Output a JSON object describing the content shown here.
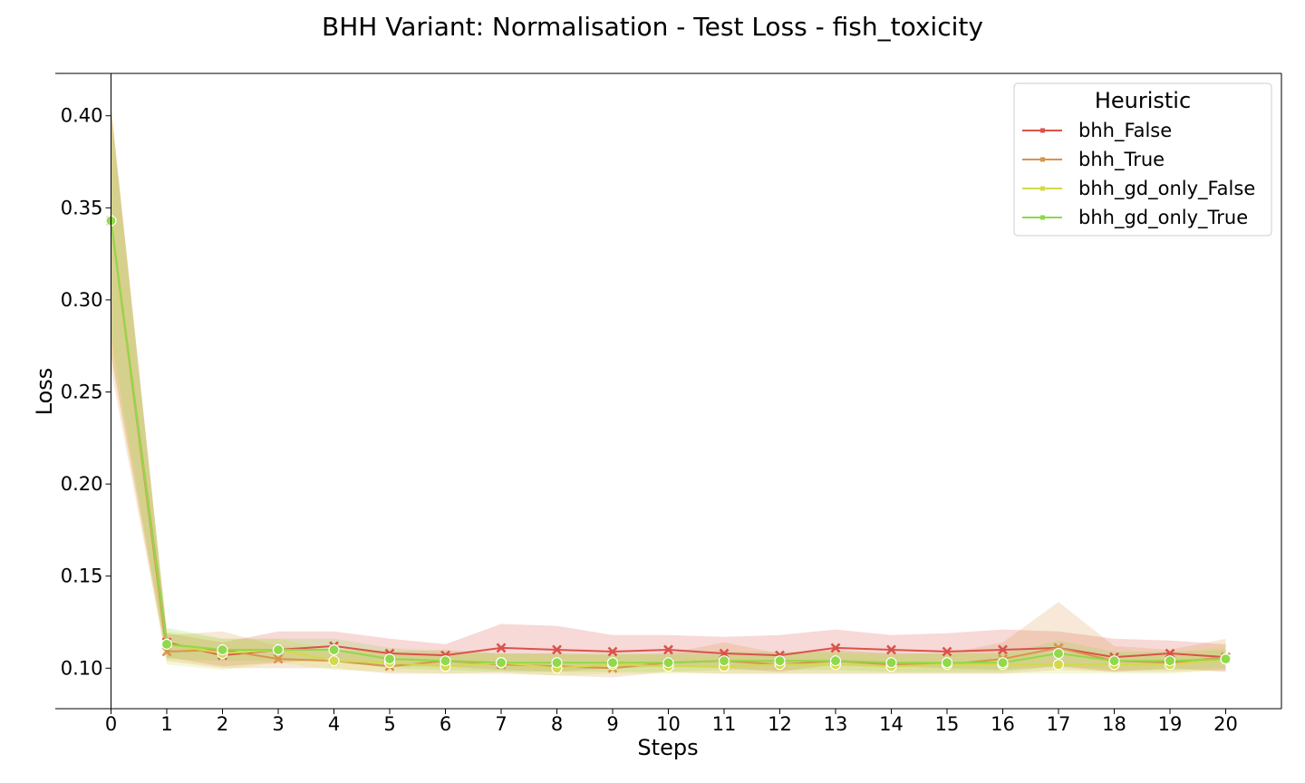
{
  "chart_data": {
    "type": "line",
    "title": "BHH Variant: Normalisation - Test Loss - fish_toxicity",
    "xlabel": "Steps",
    "ylabel": "Loss",
    "xlim": [
      -1,
      21
    ],
    "ylim": [
      0.078,
      0.423
    ],
    "x": [
      0,
      1,
      2,
      3,
      4,
      5,
      6,
      7,
      8,
      9,
      10,
      11,
      12,
      13,
      14,
      15,
      16,
      17,
      18,
      19,
      20
    ],
    "xticks": [
      "0",
      "1",
      "2",
      "3",
      "4",
      "5",
      "6",
      "7",
      "8",
      "9",
      "10",
      "11",
      "12",
      "13",
      "14",
      "15",
      "16",
      "17",
      "18",
      "19",
      "20"
    ],
    "yticks": [
      0.1,
      0.15,
      0.2,
      0.25,
      0.3,
      0.35,
      0.4
    ],
    "ytick_labels": [
      "0.10",
      "0.15",
      "0.20",
      "0.25",
      "0.30",
      "0.35",
      "0.40"
    ],
    "legend": {
      "title": "Heuristic",
      "position": "top-right"
    },
    "series": [
      {
        "name": "bhh_False",
        "color": "#d9534a",
        "marker": "x",
        "values": [
          0.343,
          0.114,
          0.107,
          0.11,
          0.112,
          0.108,
          0.107,
          0.111,
          0.11,
          0.109,
          0.11,
          0.108,
          0.107,
          0.111,
          0.11,
          0.109,
          0.11,
          0.111,
          0.106,
          0.108,
          0.106
        ],
        "lower": [
          0.27,
          0.106,
          0.101,
          0.103,
          0.105,
          0.101,
          0.101,
          0.099,
          0.098,
          0.1,
          0.101,
          0.1,
          0.098,
          0.102,
          0.101,
          0.1,
          0.099,
          0.101,
          0.098,
          0.1,
          0.098
        ],
        "upper": [
          0.405,
          0.119,
          0.114,
          0.12,
          0.12,
          0.116,
          0.113,
          0.124,
          0.123,
          0.118,
          0.118,
          0.117,
          0.118,
          0.121,
          0.118,
          0.119,
          0.121,
          0.12,
          0.116,
          0.115,
          0.113
        ]
      },
      {
        "name": "bhh_True",
        "color": "#d9944a",
        "marker": "x",
        "values": [
          0.343,
          0.109,
          0.11,
          0.105,
          0.104,
          0.101,
          0.104,
          0.102,
          0.101,
          0.1,
          0.103,
          0.104,
          0.102,
          0.104,
          0.102,
          0.102,
          0.105,
          0.111,
          0.104,
          0.103,
          0.106
        ],
        "lower": [
          0.262,
          0.104,
          0.1,
          0.1,
          0.1,
          0.097,
          0.097,
          0.097,
          0.096,
          0.095,
          0.098,
          0.097,
          0.097,
          0.097,
          0.097,
          0.097,
          0.097,
          0.099,
          0.098,
          0.098,
          0.099
        ],
        "upper": [
          0.405,
          0.118,
          0.12,
          0.112,
          0.11,
          0.109,
          0.11,
          0.108,
          0.108,
          0.107,
          0.108,
          0.114,
          0.108,
          0.11,
          0.108,
          0.108,
          0.114,
          0.136,
          0.112,
          0.11,
          0.116
        ]
      },
      {
        "name": "bhh_gd_only_False",
        "color": "#d4d94a",
        "marker": "o",
        "values": [
          0.343,
          0.113,
          0.108,
          0.11,
          0.104,
          0.103,
          0.101,
          0.103,
          0.1,
          0.102,
          0.101,
          0.101,
          0.102,
          0.102,
          0.101,
          0.102,
          0.102,
          0.102,
          0.102,
          0.102,
          0.105
        ],
        "lower": [
          0.27,
          0.102,
          0.099,
          0.103,
          0.099,
          0.098,
          0.097,
          0.098,
          0.096,
          0.097,
          0.097,
          0.097,
          0.097,
          0.097,
          0.097,
          0.097,
          0.097,
          0.097,
          0.097,
          0.097,
          0.099
        ],
        "upper": [
          0.405,
          0.12,
          0.116,
          0.116,
          0.11,
          0.109,
          0.107,
          0.108,
          0.107,
          0.108,
          0.107,
          0.107,
          0.108,
          0.108,
          0.107,
          0.108,
          0.108,
          0.108,
          0.108,
          0.108,
          0.112
        ]
      },
      {
        "name": "bhh_gd_only_True",
        "color": "#8fd94a",
        "marker": "o",
        "values": [
          0.343,
          0.113,
          0.11,
          0.11,
          0.11,
          0.105,
          0.104,
          0.103,
          0.103,
          0.103,
          0.103,
          0.104,
          0.104,
          0.104,
          0.103,
          0.103,
          0.103,
          0.108,
          0.104,
          0.104,
          0.105
        ],
        "lower": [
          0.28,
          0.105,
          0.104,
          0.104,
          0.104,
          0.1,
          0.099,
          0.098,
          0.098,
          0.098,
          0.098,
          0.099,
          0.099,
          0.099,
          0.098,
          0.098,
          0.098,
          0.101,
          0.099,
          0.099,
          0.1
        ],
        "upper": [
          0.4,
          0.122,
          0.116,
          0.116,
          0.116,
          0.111,
          0.109,
          0.108,
          0.108,
          0.108,
          0.108,
          0.109,
          0.109,
          0.109,
          0.108,
          0.108,
          0.108,
          0.115,
          0.109,
          0.109,
          0.11
        ]
      }
    ]
  }
}
